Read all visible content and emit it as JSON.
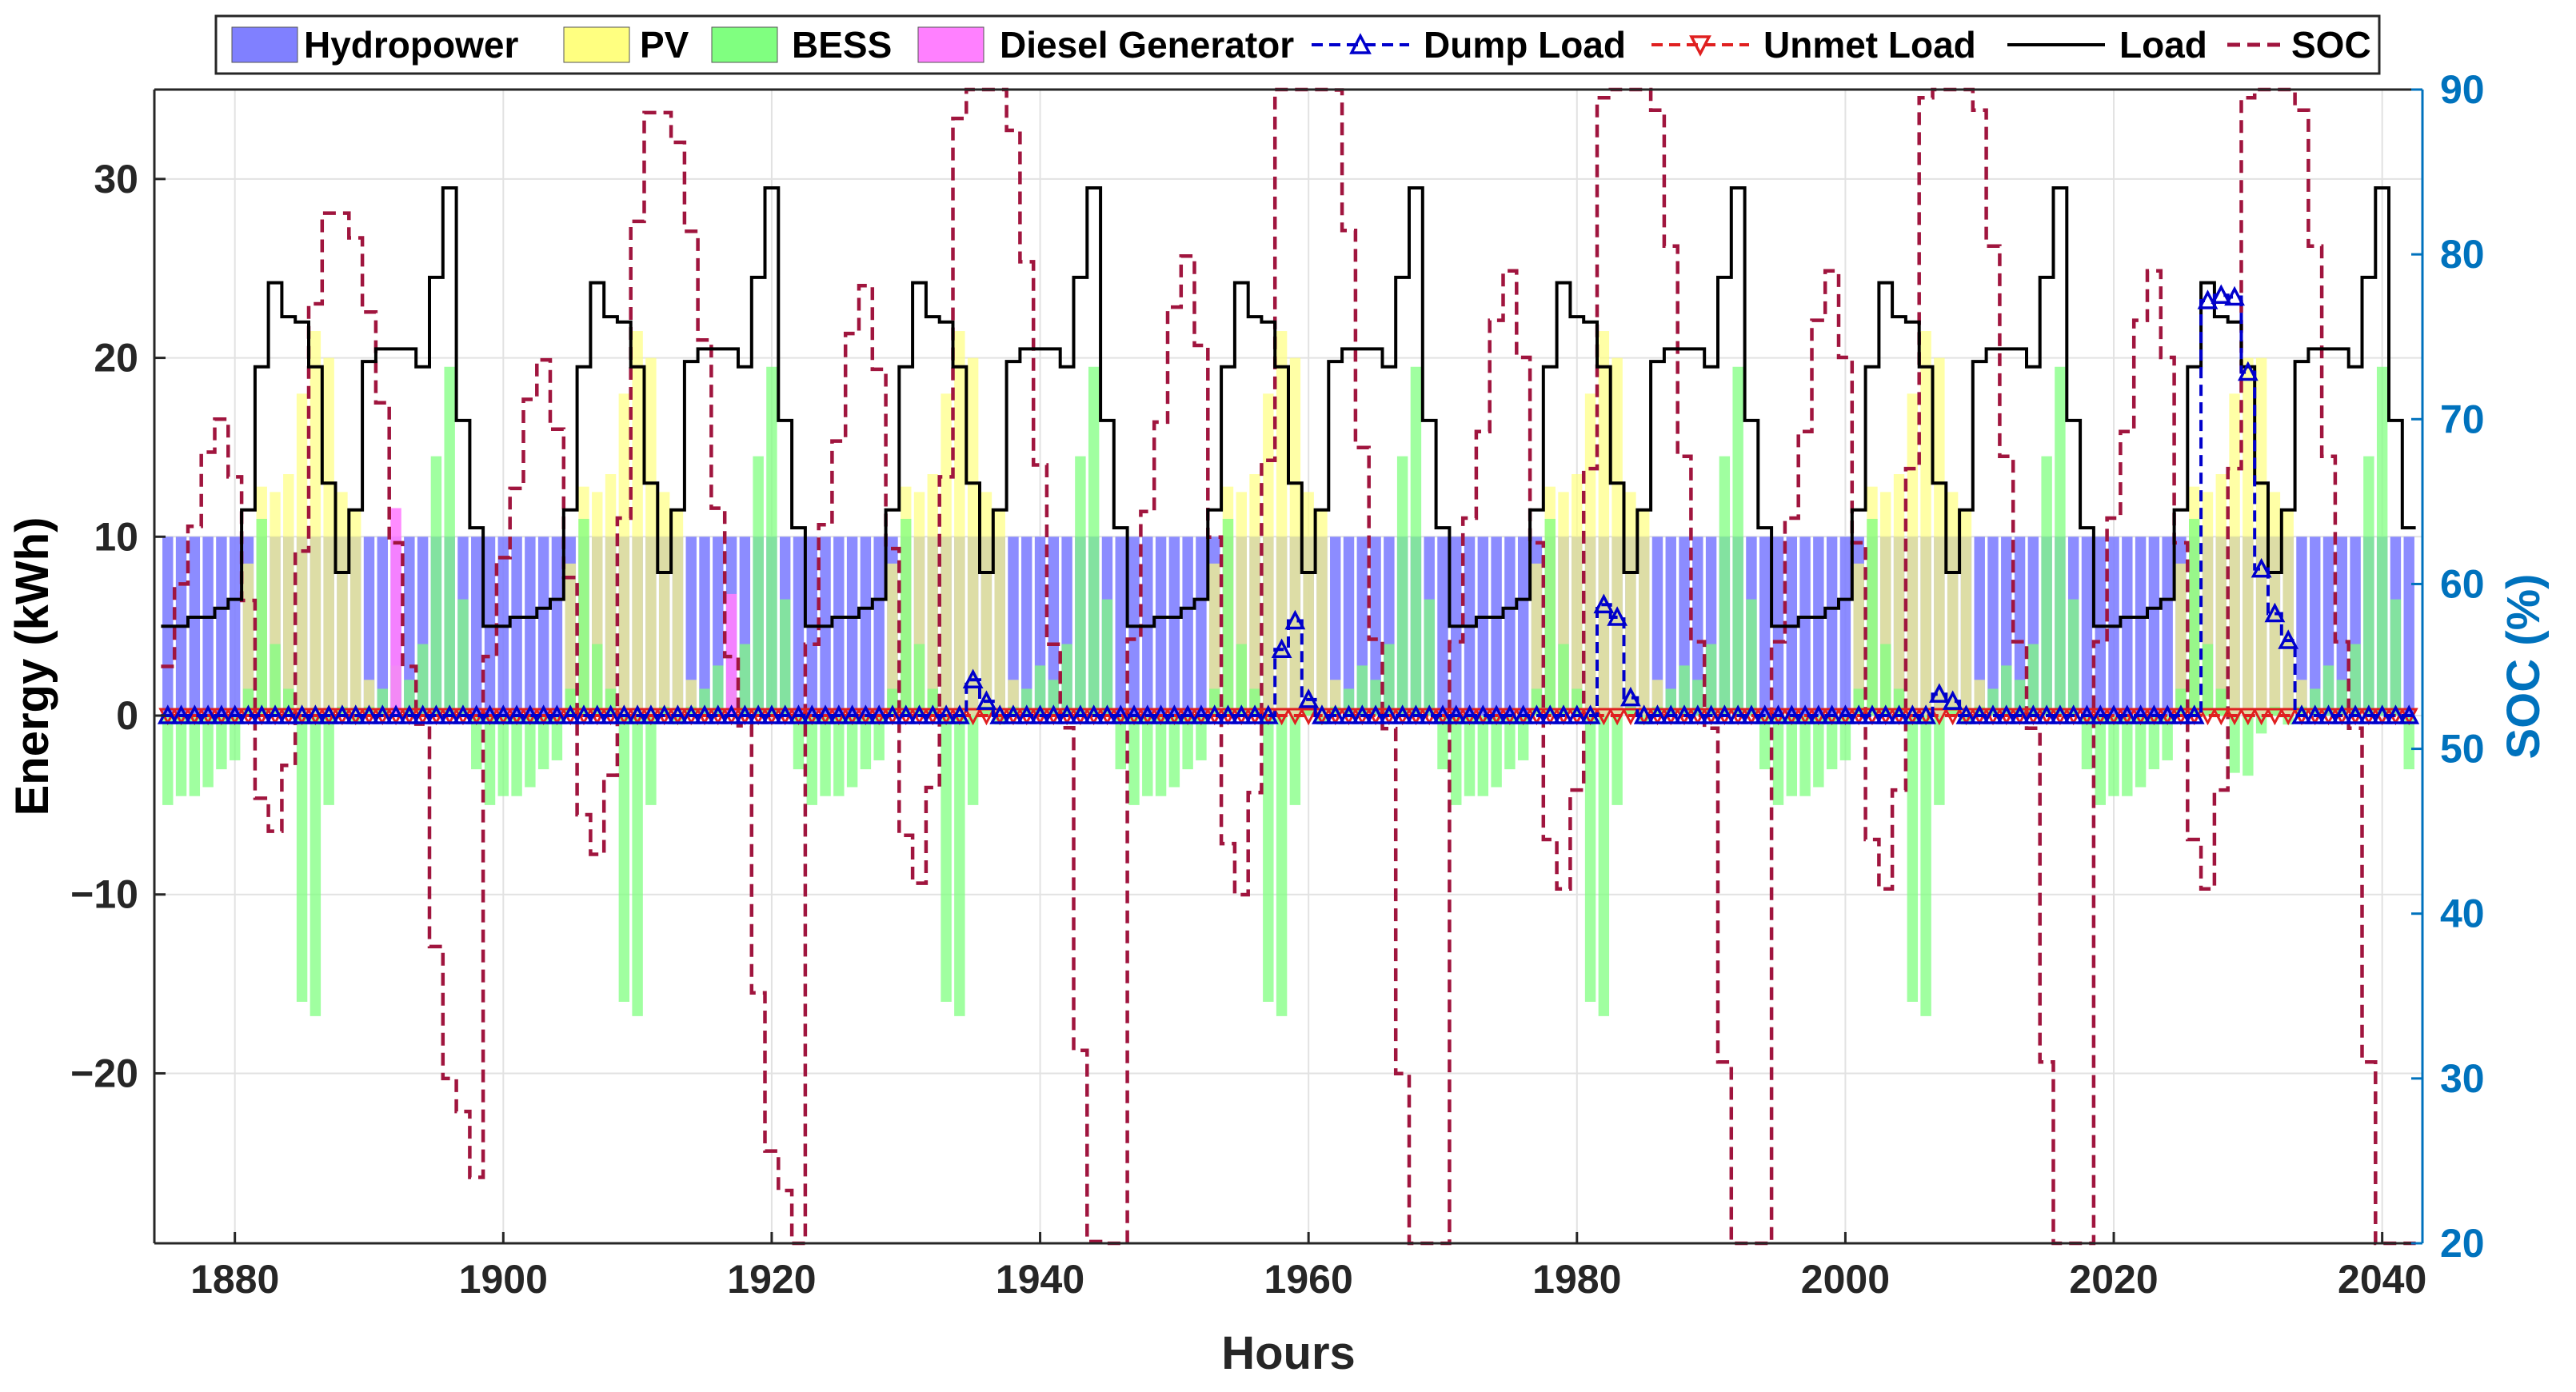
{
  "chart_data": {
    "type": "bar",
    "title": "",
    "xlabel": "Hours",
    "ylabel": "Energy (kWh)",
    "y2label": "SOC (%)",
    "xlim": [
      1874,
      2043
    ],
    "ylim": [
      -29.5,
      35
    ],
    "y2lim": [
      20,
      90
    ],
    "xticks": [
      1880,
      1900,
      1920,
      1940,
      1960,
      1980,
      2000,
      2020,
      2040
    ],
    "yticks": [
      -20,
      -10,
      0,
      10,
      20,
      30
    ],
    "y2ticks": [
      20,
      30,
      40,
      50,
      60,
      70,
      80,
      90
    ],
    "yticklabels": [
      "−20",
      "−10",
      "0",
      "10",
      "20",
      "30"
    ],
    "grid": true,
    "legend_position": "top",
    "colors": {
      "hydropower": "#8080ff",
      "pv": "#ffff80",
      "bess": "#80ff80",
      "diesel": "#ff80ff",
      "dump": "#0000cc",
      "unmet": "#e02020",
      "load": "#000000",
      "soc": "#a0153e",
      "right_axis": "#0072bd"
    },
    "legend": [
      {
        "key": "hydropower",
        "label": "Hydropower",
        "kind": "patch"
      },
      {
        "key": "pv",
        "label": "PV",
        "kind": "patch"
      },
      {
        "key": "bess",
        "label": "BESS",
        "kind": "patch"
      },
      {
        "key": "diesel",
        "label": "Diesel Generator",
        "kind": "patch"
      },
      {
        "key": "dump",
        "label": "Dump Load",
        "kind": "line-up"
      },
      {
        "key": "unmet",
        "label": "Unmet Load",
        "kind": "line-down"
      },
      {
        "key": "load",
        "label": "Load",
        "kind": "line"
      },
      {
        "key": "soc",
        "label": "SOC",
        "kind": "dashed"
      }
    ],
    "x_start": 1875,
    "load_day_profile": [
      5,
      5,
      5.5,
      5.5,
      6,
      6.5,
      11.5,
      19.5,
      24.2,
      22.3,
      22,
      19.5,
      13,
      8,
      11.5,
      19.8,
      20.5,
      20.5,
      20.5,
      19.5,
      24.5,
      29.5,
      16.5,
      10.5
    ],
    "pv_day_profile": [
      0,
      0,
      0,
      0,
      0,
      0,
      8.5,
      12.8,
      12.5,
      13.5,
      18,
      21.5,
      20,
      12.5,
      11.5,
      2,
      0,
      0,
      0,
      0,
      0,
      0,
      0,
      0
    ],
    "bess_day_profile": [
      -5,
      -4.5,
      -4.5,
      -4,
      -3,
      -2.5,
      1.5,
      11,
      4,
      1.5,
      -16,
      -16.8,
      -5,
      0.5,
      -0.5,
      0.5,
      1.5,
      2.8,
      2,
      4,
      14.5,
      19.5,
      6.5,
      -3
    ],
    "hydro_value": 10,
    "diesel": [
      {
        "x": 1892,
        "value": 11.6
      },
      {
        "x": 1917,
        "value": 6.8
      }
    ],
    "soc_day_profile": [
      55,
      60,
      63.5,
      68,
      70,
      66.5,
      59,
      47,
      45,
      49,
      62,
      77,
      82.5,
      82.5,
      81,
      76.5,
      71,
      62.5,
      55,
      51.5,
      38,
      30,
      28,
      24
    ],
    "soc_amplitude_by_day": [
      1.0,
      1.2,
      1.45,
      1.55,
      1.5,
      1.5,
      1.5
    ],
    "soc_stepped": true,
    "dump_load": [
      {
        "x": 1935,
        "value": 2
      },
      {
        "x": 1936,
        "value": 0.8
      },
      {
        "x": 1958,
        "value": 3.7
      },
      {
        "x": 1959,
        "value": 5.3
      },
      {
        "x": 1960,
        "value": 0.9
      },
      {
        "x": 1982,
        "value": 6.2
      },
      {
        "x": 1983,
        "value": 5.5
      },
      {
        "x": 1984,
        "value": 1
      },
      {
        "x": 2007,
        "value": 1.2
      },
      {
        "x": 2008,
        "value": 0.8
      },
      {
        "x": 2027,
        "value": 23.2
      },
      {
        "x": 2028,
        "value": 23.5
      },
      {
        "x": 2029,
        "value": 23.4
      },
      {
        "x": 2030,
        "value": 19.2
      },
      {
        "x": 2031,
        "value": 8.2
      },
      {
        "x": 2032,
        "value": 5.7
      },
      {
        "x": 2033,
        "value": 4.2
      }
    ],
    "unmet_load": 0
  }
}
